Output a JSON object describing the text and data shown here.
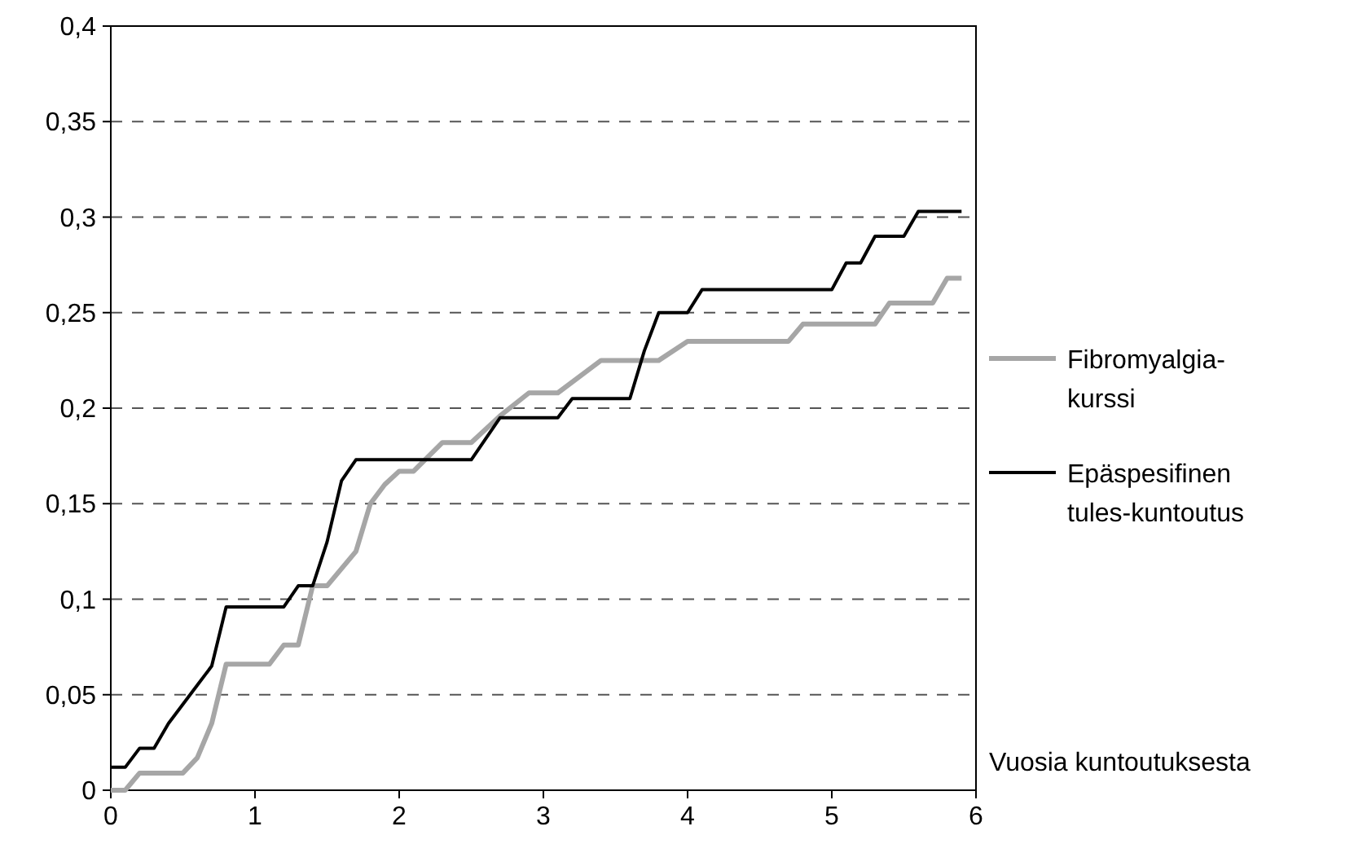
{
  "chart_data": {
    "type": "line",
    "xlabel": "Vuosia kuntoutuksesta",
    "xlim": [
      0,
      6
    ],
    "xticks": [
      0,
      1,
      2,
      3,
      4,
      5,
      6
    ],
    "ylim": [
      0,
      0.4
    ],
    "yticks": [
      {
        "value": 0,
        "label": "0"
      },
      {
        "value": 0.05,
        "label": "0,05"
      },
      {
        "value": 0.1,
        "label": "0,1"
      },
      {
        "value": 0.15,
        "label": "0,15"
      },
      {
        "value": 0.2,
        "label": "0,2"
      },
      {
        "value": 0.25,
        "label": "0,25"
      },
      {
        "value": 0.3,
        "label": "0,3"
      },
      {
        "value": 0.35,
        "label": "0,35"
      },
      {
        "value": 0.4,
        "label": "0,4"
      }
    ],
    "grid": "y",
    "legend": "right",
    "marker": "none",
    "series": [
      {
        "name": "Fibromyalgia-kurssi",
        "color": "#a6a6a6",
        "x": [
          0,
          0.1,
          0.2,
          0.5,
          0.6,
          0.7,
          0.8,
          1.1,
          1.2,
          1.3,
          1.4,
          1.5,
          1.7,
          1.8,
          1.9,
          2.0,
          2.1,
          2.3,
          2.5,
          2.7,
          2.9,
          3.1,
          3.4,
          3.8,
          4.0,
          4.7,
          4.8,
          5.3,
          5.4,
          5.7,
          5.8,
          5.9
        ],
        "values": [
          0,
          0,
          0.009,
          0.009,
          0.017,
          0.035,
          0.066,
          0.066,
          0.076,
          0.076,
          0.107,
          0.107,
          0.125,
          0.15,
          0.16,
          0.167,
          0.167,
          0.182,
          0.182,
          0.196,
          0.208,
          0.208,
          0.225,
          0.225,
          0.235,
          0.235,
          0.244,
          0.244,
          0.255,
          0.255,
          0.268,
          0.268
        ]
      },
      {
        "name": "Epäspesifinen tules-kuntoutus",
        "color": "#000000",
        "x": [
          0,
          0.1,
          0.2,
          0.3,
          0.4,
          0.5,
          0.6,
          0.7,
          0.8,
          1.2,
          1.3,
          1.4,
          1.5,
          1.6,
          1.7,
          2.5,
          2.7,
          3.1,
          3.2,
          3.6,
          3.7,
          3.8,
          4.0,
          4.1,
          5.0,
          5.1,
          5.2,
          5.3,
          5.5,
          5.6,
          5.9
        ],
        "values": [
          0.012,
          0.012,
          0.022,
          0.022,
          0.035,
          0.045,
          0.055,
          0.065,
          0.096,
          0.096,
          0.107,
          0.107,
          0.13,
          0.162,
          0.173,
          0.173,
          0.195,
          0.195,
          0.205,
          0.205,
          0.23,
          0.25,
          0.25,
          0.262,
          0.262,
          0.276,
          0.276,
          0.29,
          0.29,
          0.303,
          0.303
        ]
      }
    ]
  }
}
